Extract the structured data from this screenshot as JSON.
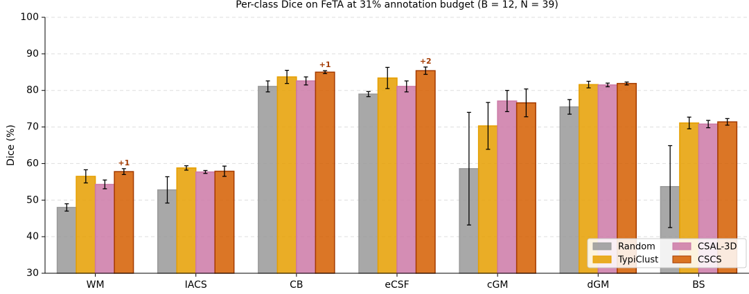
{
  "chart_data": {
    "type": "bar",
    "title": "Per-class Dice on FeTA at 31% annotation budget (B = 12, N = 39)",
    "y_label": "Dice (%)",
    "categories": [
      "WM",
      "IACS",
      "CB",
      "eCSF",
      "cGM",
      "dGM",
      "BS"
    ],
    "series": [
      {
        "name": "Random",
        "color": "#999999",
        "edge": "#999999",
        "values": [
          48.0,
          52.8,
          81.1,
          79.0,
          58.6,
          75.5,
          53.7
        ],
        "errors": [
          1.0,
          3.6,
          1.5,
          0.7,
          15.4,
          2.0,
          11.2
        ]
      },
      {
        "name": "TypiClust",
        "color": "#e69f00",
        "edge": "#e69f00",
        "values": [
          56.5,
          58.8,
          83.7,
          83.4,
          70.3,
          81.6,
          71.1
        ],
        "errors": [
          1.8,
          0.6,
          1.8,
          2.9,
          6.4,
          0.9,
          1.6
        ]
      },
      {
        "name": "CSAL-3D",
        "color": "#cc79a7",
        "edge": "#cc79a7",
        "values": [
          54.3,
          57.7,
          82.6,
          81.1,
          77.1,
          81.5,
          70.8
        ],
        "errors": [
          1.2,
          0.4,
          1.1,
          1.5,
          2.9,
          0.5,
          1.0
        ]
      },
      {
        "name": "CSCS",
        "color": "#d55e00",
        "edge": "#a33a00",
        "values": [
          57.8,
          57.9,
          85.0,
          85.4,
          76.6,
          81.9,
          71.4
        ],
        "errors": [
          0.8,
          1.4,
          0.4,
          1.0,
          3.8,
          0.4,
          0.9
        ],
        "annotations": [
          "+1",
          null,
          "+1",
          "+2",
          null,
          null,
          null
        ]
      }
    ],
    "ylim": [
      30,
      100
    ],
    "yticks": [
      30,
      40,
      50,
      60,
      70,
      80,
      90,
      100
    ],
    "grid": true,
    "legend": "lower right"
  }
}
